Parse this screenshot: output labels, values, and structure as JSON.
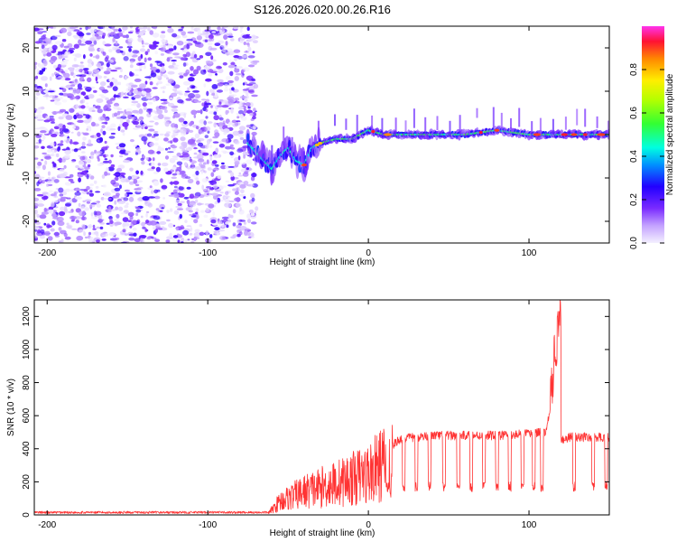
{
  "title": "S126.2026.020.00.26.R16",
  "chart_data": [
    {
      "type": "heatmap",
      "name": "spectrogram",
      "xlabel": "Height of straight line (km)",
      "ylabel": "Frequency (Hz)",
      "xlim": [
        -208,
        150
      ],
      "ylim": [
        -25,
        25
      ],
      "xticks": [
        -200,
        -100,
        0,
        100
      ],
      "yticks": [
        -20,
        -10,
        0,
        10,
        20
      ],
      "noise_region_x": [
        -208,
        -70
      ],
      "signal_track": {
        "x": [
          -75,
          -70,
          -65,
          -60,
          -55,
          -50,
          -45,
          -40,
          -35,
          -30,
          -20,
          -10,
          0,
          10,
          20,
          40,
          60,
          80,
          100,
          120,
          150
        ],
        "y": [
          -2,
          -4,
          -6,
          -8,
          -5,
          -3,
          -6,
          -7,
          -3,
          -2,
          -1,
          -1,
          1,
          0,
          0,
          0,
          0,
          1,
          0,
          0,
          0
        ]
      },
      "colorbar": {
        "label": "Normalized spectral amplitude",
        "range": [
          0,
          1
        ],
        "ticks": [
          0.0,
          0.2,
          0.4,
          0.6,
          0.8
        ]
      }
    },
    {
      "type": "line",
      "name": "snr",
      "series": [
        {
          "name": "SNR",
          "color": "#ff3333"
        }
      ],
      "xlabel": "Height of straight line (km)",
      "ylabel": "SNR (10 * v/v)",
      "xlim": [
        -208,
        150
      ],
      "ylim": [
        0,
        1300
      ],
      "xticks": [
        -200,
        -100,
        0,
        100
      ],
      "yticks": [
        0,
        200,
        400,
        600,
        800,
        1000,
        1200
      ],
      "profile": {
        "x": [
          -208,
          -62,
          -55,
          -40,
          -20,
          0,
          10,
          20,
          40,
          60,
          80,
          100,
          110,
          115,
          118,
          120,
          125,
          150
        ],
        "y": [
          15,
          15,
          100,
          170,
          230,
          300,
          380,
          460,
          480,
          480,
          480,
          490,
          500,
          700,
          1250,
          450,
          470,
          470
        ]
      },
      "dropouts_x": [
        12,
        22,
        30,
        38,
        47,
        56,
        64,
        72,
        80,
        88,
        96,
        103,
        108,
        128,
        140,
        148
      ]
    }
  ]
}
